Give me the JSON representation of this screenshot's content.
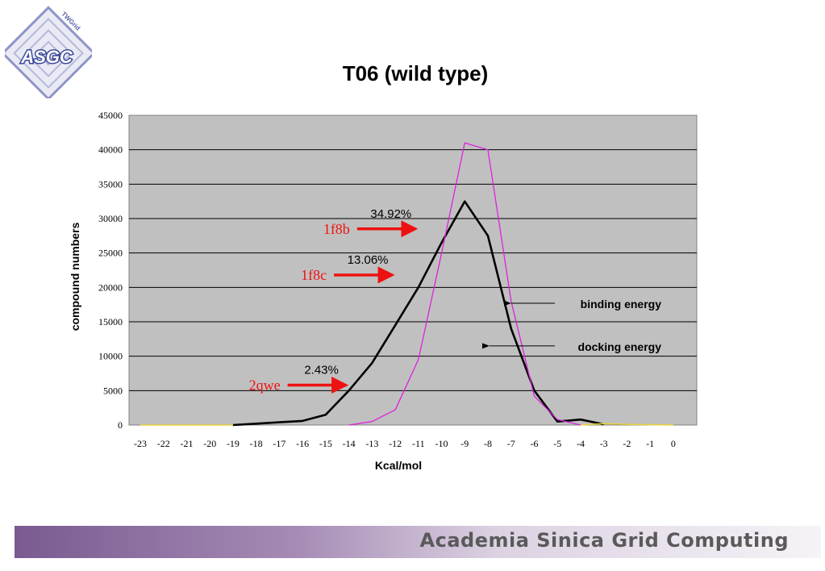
{
  "logo": {
    "text": "ASGC",
    "subtext": "TWGrid"
  },
  "title": "T06 (wild type)",
  "footer": {
    "text": "Academia Sinica Grid Computing"
  },
  "colors": {
    "docking": "#000000",
    "binding": "#dd22dd",
    "arrow_red": "#ee1111",
    "plot_bg": "#c0c0c0",
    "footer_start": "#7a5a90"
  },
  "chart_data": {
    "type": "line",
    "xlabel": "Kcal/mol",
    "ylabel": "compound numbers",
    "categories": [
      "-23",
      "-22",
      "-21",
      "-20",
      "-19",
      "-18",
      "-17",
      "-16",
      "-15",
      "-14",
      "-13",
      "-12",
      "-11",
      "-10",
      "-9",
      "-8",
      "-7",
      "-6",
      "-5",
      "-4",
      "-3",
      "-2",
      "-1",
      "0"
    ],
    "ylim": [
      0,
      45000
    ],
    "yticks": [
      "0",
      "5000",
      "10000",
      "15000",
      "20000",
      "25000",
      "30000",
      "35000",
      "40000",
      "45000"
    ],
    "grid": true,
    "series": [
      {
        "name": "docking energy",
        "color": "#000000",
        "values": [
          null,
          null,
          null,
          null,
          0,
          200,
          400,
          600,
          1500,
          5000,
          9000,
          14500,
          20000,
          26500,
          32500,
          27500,
          14000,
          5000,
          500,
          800,
          100,
          null,
          null,
          null
        ]
      },
      {
        "name": "binding energy",
        "color": "#dd22dd",
        "values": [
          null,
          null,
          null,
          null,
          null,
          null,
          null,
          null,
          null,
          0,
          500,
          2200,
          9500,
          25000,
          41000,
          40000,
          18000,
          4200,
          800,
          0,
          null,
          null,
          null,
          null
        ]
      },
      {
        "name": "",
        "color": "#e6d23c",
        "values": [
          0,
          0,
          0,
          0,
          0,
          null,
          null,
          null,
          null,
          null,
          null,
          null,
          null,
          null,
          null,
          null,
          null,
          null,
          null,
          0,
          200,
          100,
          50,
          0
        ]
      }
    ],
    "annotations": [
      {
        "label": "1f8b",
        "percent": "34.92%",
        "x": "-11",
        "y": 28500
      },
      {
        "label": "1f8c",
        "percent": "13.06%",
        "x": "-12",
        "y": 21800
      },
      {
        "label": "2qwe",
        "percent": "2.43%",
        "x": "-14",
        "y": 5800
      }
    ],
    "legend_callouts": [
      {
        "text": "binding energy",
        "x": "-7",
        "y": 17700
      },
      {
        "text": "docking energy",
        "x": "-8",
        "y": 11500
      }
    ]
  }
}
